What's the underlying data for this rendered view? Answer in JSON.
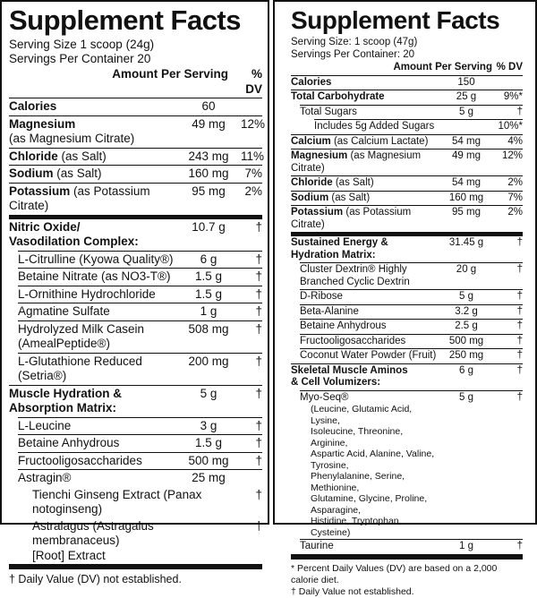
{
  "left": {
    "title": "Supplement Facts",
    "serving_size": "Serving Size 1 scoop (24g)",
    "servings": "Servings Per Container 20",
    "amount_header": "Amount Per Serving",
    "dv_header": "% DV",
    "rows": [
      {
        "name": "Calories",
        "amount": "60"
      },
      {
        "name": "Magnesium",
        "detail": "(as Magnesium Citrate)",
        "amount": "49 mg",
        "dv": "12%"
      },
      {
        "name": "Chloride",
        "detail": "(as Salt)",
        "amount": "243 mg",
        "dv": "11%"
      },
      {
        "name": "Sodium",
        "detail": "(as Salt)",
        "amount": "160 mg",
        "dv": "7%"
      },
      {
        "name": "Potassium",
        "detail": "(as Potassium Citrate)",
        "amount": "95 mg",
        "dv": "2%"
      },
      {
        "name": "Nitric Oxide/\nVasodilation Complex:",
        "amount": "10.7 g",
        "dv": "†"
      },
      {
        "name": "L-Citrulline (Kyowa Quality®)",
        "amount": "6 g",
        "dv": "†"
      },
      {
        "name": "Betaine Nitrate (as NO3-T®)",
        "amount": "1.5 g",
        "dv": "†"
      },
      {
        "name": "L-Ornithine Hydrochloride",
        "amount": "1.5 g",
        "dv": "†"
      },
      {
        "name": "Agmatine Sulfate",
        "amount": "1 g",
        "dv": "†"
      },
      {
        "name": "Hydrolyzed Milk Casein\n(AmealPeptide®)",
        "amount": "508 mg",
        "dv": "†"
      },
      {
        "name": "L-Glutathione Reduced (Setria®)",
        "amount": "200 mg",
        "dv": "†"
      },
      {
        "name": "Muscle Hydration & Absorption Matrix:",
        "amount": "5 g",
        "dv": "†"
      },
      {
        "name": "L-Leucine",
        "amount": "3 g",
        "dv": "†"
      },
      {
        "name": "Betaine Anhydrous",
        "amount": "1.5 g",
        "dv": "†"
      },
      {
        "name": "Fructooligosaccharides",
        "amount": "500 mg",
        "dv": "†"
      },
      {
        "name": "Astragin®",
        "amount": "25 mg"
      },
      {
        "name": "Tienchi Ginseng Extract (Panax notoginseng)",
        "dv": "†"
      },
      {
        "name": "Astralagus (Astragalus membranaceus)\n[Root] Extract",
        "dv": "†"
      }
    ],
    "footnote": "† Daily Value (DV) not established."
  },
  "right": {
    "title": "Supplement Facts",
    "serving_size": "Serving Size: 1 scoop (47g)",
    "servings": "Servings Per Container: 20",
    "amount_header": "Amount Per Serving",
    "dv_header": "% DV",
    "rows": [
      {
        "name": "Calories",
        "amount": "150"
      },
      {
        "name": "Total Carbohydrate",
        "amount": "25 g",
        "dv": "9%*"
      },
      {
        "name": "Total Sugars",
        "amount": "5 g",
        "dv": "†"
      },
      {
        "name": "Includes 5g Added Sugars",
        "dv": "10%*"
      },
      {
        "name": "Calcium",
        "detail": "(as Calcium Lactate)",
        "amount": "54 mg",
        "dv": "4%"
      },
      {
        "name": "Magnesium",
        "detail": "(as Magnesium Citrate)",
        "amount": "49 mg",
        "dv": "12%"
      },
      {
        "name": "Chloride",
        "detail": "(as Salt)",
        "amount": "54 mg",
        "dv": "2%"
      },
      {
        "name": "Sodium",
        "detail": "(as Salt)",
        "amount": "160 mg",
        "dv": "7%"
      },
      {
        "name": "Potassium",
        "detail": "(as Potassium Citrate)",
        "amount": "95 mg",
        "dv": "2%"
      },
      {
        "name": "Sustained Energy &\nHydration Matrix:",
        "amount": "31.45 g",
        "dv": "†"
      },
      {
        "name": "Cluster Dextrin® Highly\nBranched Cyclic Dextrin",
        "amount": "20 g",
        "dv": "†"
      },
      {
        "name": "D-Ribose",
        "amount": "5 g",
        "dv": "†"
      },
      {
        "name": "Beta-Alanine",
        "amount": "3.2 g",
        "dv": "†"
      },
      {
        "name": "Betaine Anhydrous",
        "amount": "2.5 g",
        "dv": "†"
      },
      {
        "name": "Fructooligosaccharides",
        "amount": "500 mg",
        "dv": "†"
      },
      {
        "name": "Coconut Water Powder (Fruit)",
        "amount": "250 mg",
        "dv": "†"
      },
      {
        "name": "Skeletal Muscle Aminos\n& Cell Volumizers:",
        "amount": "6 g",
        "dv": "†"
      },
      {
        "name": "Myo-Seq®",
        "detail": "(Leucine, Glutamic Acid, Lysine,\nIsoleucine, Threonine, Arginine,\nAspartic Acid, Alanine, Valine, Tyrosine,\nPhenylalanine, Serine, Methionine,\nGlutamine, Glycine, Proline, Asparagine,\nHistidine, Tryptophan, Cysteine)",
        "amount": "5 g",
        "dv": "†"
      },
      {
        "name": "Taurine",
        "amount": "1 g",
        "dv": "†"
      }
    ],
    "footnotes": [
      "* Percent Daily Values (DV) are based on a 2,000 calorie diet.",
      "† Daily Value not established."
    ]
  }
}
